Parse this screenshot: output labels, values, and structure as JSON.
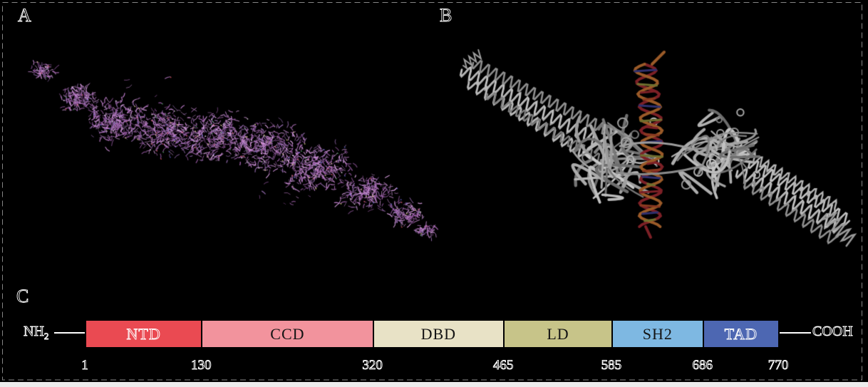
{
  "panels": {
    "a_label": "A",
    "b_label": "B",
    "c_label": "C"
  },
  "art": {
    "stick_palette": [
      "#b475c0",
      "#c98cd4",
      "#a263ae",
      "#8f549c",
      "#d9a0e2",
      "#9b6fb5"
    ],
    "atom_accents": [
      "#e05555",
      "#5866d6",
      "#e3e37c",
      "#f0f0f0",
      "#4aa85e"
    ],
    "dna_strand_colors": [
      "#7c2026",
      "#9a5a28"
    ],
    "dna_rung_colors": [
      "#30306e",
      "#6f6f2e",
      "#7c2026",
      "#8a3a20"
    ]
  },
  "chart_data": {
    "type": "domain-map",
    "n_terminus": {
      "main": "NH",
      "sub": "2"
    },
    "c_terminus": "COOH",
    "domains": [
      {
        "name": "NTD",
        "start": 1,
        "end": 130,
        "color": "#ea4a52",
        "label_style": "outline"
      },
      {
        "name": "CCD",
        "start": 130,
        "end": 320,
        "color": "#f2939d",
        "label_style": "solid"
      },
      {
        "name": "DBD",
        "start": 320,
        "end": 465,
        "color": "#e8e2c6",
        "label_style": "solid"
      },
      {
        "name": "LD",
        "start": 465,
        "end": 585,
        "color": "#c7c489",
        "label_style": "solid"
      },
      {
        "name": "SH2",
        "start": 585,
        "end": 686,
        "color": "#7eb8e2",
        "label_style": "solid"
      },
      {
        "name": "TAD",
        "start": 686,
        "end": 770,
        "color": "#4d67b2",
        "label_style": "outline"
      }
    ],
    "ticks": [
      1,
      130,
      320,
      465,
      585,
      686,
      770
    ]
  }
}
